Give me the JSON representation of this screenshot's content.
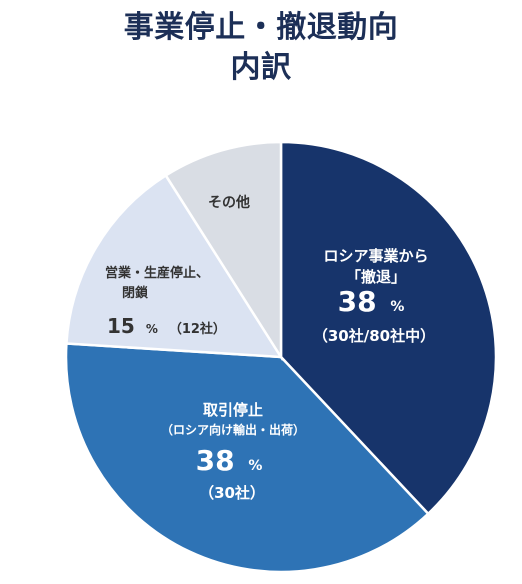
{
  "title": {
    "line1": "事業停止・撤退動向",
    "line2": "内訳"
  },
  "chart_data": {
    "type": "pie",
    "title": "事業停止・撤退動向 内訳",
    "unit": "%",
    "slices": [
      {
        "key": "withdraw",
        "label_lines": [
          "ロシア事業から",
          "「撤退」"
        ],
        "value": 38,
        "percent_text": "38",
        "note": "（30社/80社中）",
        "color": "#17346b"
      },
      {
        "key": "trade-stop",
        "label_lines": [
          "取引停止",
          "（ロシア向け輸出・出荷）"
        ],
        "value": 38,
        "percent_text": "38",
        "note": "（30社）",
        "color": "#2e73b5"
      },
      {
        "key": "business-stop",
        "label_lines": [
          "営業・生産停止、",
          "閉鎖"
        ],
        "value": 15,
        "percent_text": "15",
        "note": "（12社）",
        "color": "#dbe3f2"
      },
      {
        "key": "other",
        "label_lines": [
          "その他"
        ],
        "value": 9,
        "percent_text": "",
        "note": "",
        "color": "#d9dde4"
      }
    ]
  }
}
